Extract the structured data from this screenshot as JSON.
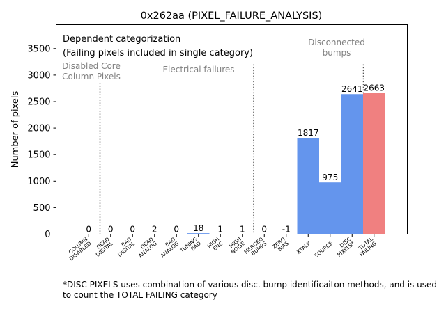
{
  "chart_data": {
    "type": "bar",
    "title": "0x262aa (PIXEL_FAILURE_ANALYSIS)",
    "xlabel": "",
    "ylabel": "Number of pixels",
    "ylim": [
      0,
      3950
    ],
    "yticks": [
      0,
      500,
      1000,
      1500,
      2000,
      2500,
      3000,
      3500
    ],
    "grid": false,
    "categories": [
      "COLUMN\nDISABLED",
      "DEAD\nDIGITAL",
      "BAD\nDIGITAL",
      "DEAD\nANALOG",
      "BAD\nANALOG",
      "TUNING\nBAD",
      "HIGH\nENC",
      "HIGH\nNOISE",
      "MERGED\nBUMPS",
      "ZERO\nBIAS",
      "XTALK",
      "SOURCE",
      "DISC\nPIXELS*",
      "TOTAL\nFAILING"
    ],
    "values": [
      0,
      0,
      0,
      2,
      0,
      18,
      1,
      1,
      0,
      -1,
      1817,
      975,
      2641,
      2663
    ],
    "value_labels": [
      "0",
      "0",
      "0",
      "2",
      "0",
      "18",
      "1",
      "1",
      "0",
      "-1",
      "1817",
      "975",
      "2641",
      "2663"
    ],
    "bar_colors": [
      "#6495ed",
      "#6495ed",
      "#6495ed",
      "#6495ed",
      "#6495ed",
      "#6495ed",
      "#6495ed",
      "#6495ed",
      "#6495ed",
      "#6495ed",
      "#6495ed",
      "#6495ed",
      "#6495ed",
      "#f08080"
    ],
    "group_dividers_after": [
      0,
      7,
      12
    ],
    "group_labels": [
      {
        "text": "Disabled Core\nColumn Pixels",
        "center_index": 0
      },
      {
        "text": "Electrical failures",
        "center_index": 4
      },
      {
        "text": "Disconnected\nbumps",
        "center_index": 10.5
      }
    ],
    "annotation_lines": [
      "Dependent categorization",
      "(Failing pixels included in single category)"
    ],
    "footnote": "*DISC PIXELS uses combination of various disc. bump identificaiton methods, and is used to count the TOTAL FAILING category"
  }
}
